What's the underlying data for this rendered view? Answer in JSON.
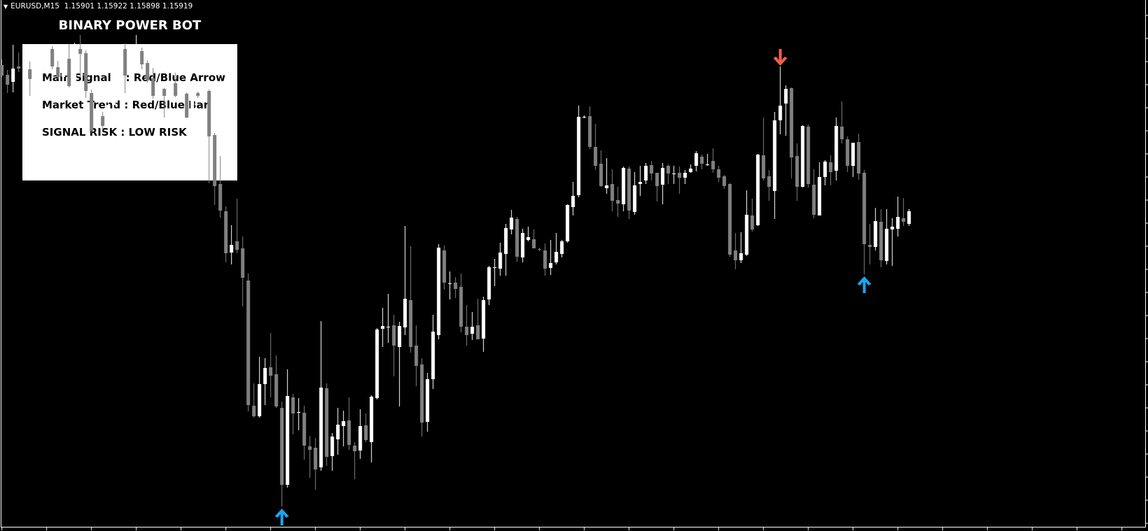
{
  "header": {
    "symbol": "EURUSD,M15",
    "ohlc": "1.15901 1.15922 1.15898 1.15919"
  },
  "panel": {
    "title": "BINARY POWER BOT",
    "lines": [
      "Main Signal    : Red/Blue Arrow",
      "Market Trend : Red/Blue Bar",
      "SIGNAL RISK : LOW RISK"
    ]
  },
  "colors": {
    "background": "#000000",
    "bull_candle": "#ffffff",
    "bear_candle": "#808080",
    "buy_arrow": "#1aa7ec",
    "sell_arrow": "#f4604a",
    "panel": "#ffffff"
  },
  "chart_data": {
    "type": "candlestick",
    "symbol": "EURUSD",
    "timeframe": "M15",
    "grid": false,
    "candle_format": "[open, high, low, close]",
    "candles": [
      [
        1.16128,
        1.16136,
        1.16111,
        1.16113
      ],
      [
        1.16114,
        1.16121,
        1.16088,
        1.161
      ],
      [
        1.16104,
        1.16157,
        1.16089,
        1.16123
      ],
      [
        1.16126,
        1.16146,
        1.16118,
        1.16123
      ],
      [
        1.16124,
        1.16147,
        1.16119,
        1.16124
      ],
      [
        1.16122,
        1.16133,
        1.16084,
        1.16108
      ],
      [
        1.16107,
        1.16118,
        1.16095,
        1.16107
      ],
      [
        1.16107,
        1.16133,
        1.16103,
        1.16129
      ],
      [
        1.16129,
        1.16155,
        1.16126,
        1.16151
      ],
      [
        1.16151,
        1.16155,
        1.16122,
        1.16126
      ],
      [
        1.16125,
        1.16134,
        1.16108,
        1.16111
      ],
      [
        1.16111,
        1.16141,
        1.16107,
        1.16137
      ],
      [
        1.16137,
        1.16158,
        1.16096,
        1.16098
      ],
      [
        1.16098,
        1.1616,
        1.16095,
        1.16149
      ],
      [
        1.16151,
        1.16171,
        1.16111,
        1.16144
      ],
      [
        1.16145,
        1.16149,
        1.16081,
        1.16091
      ],
      [
        1.16088,
        1.16093,
        1.16031,
        1.16034
      ],
      [
        1.16055,
        1.16068,
        1.16034,
        1.16055
      ],
      [
        1.16055,
        1.16061,
        1.16034,
        1.16041
      ],
      [
        1.16041,
        1.16075,
        1.16037,
        1.16071
      ],
      [
        1.16071,
        1.1611,
        1.16067,
        1.16106
      ],
      [
        1.16106,
        1.16155,
        1.16102,
        1.16151
      ],
      [
        1.16151,
        1.16159,
        1.16088,
        1.16113
      ],
      [
        1.16113,
        1.1615,
        1.16109,
        1.16146
      ],
      [
        1.16146,
        1.16171,
        1.16142,
        1.16148
      ],
      [
        1.16148,
        1.16153,
        1.16122,
        1.16129
      ],
      [
        1.16131,
        1.16135,
        1.16103,
        1.16106
      ],
      [
        1.16109,
        1.16124,
        1.1608,
        1.16084
      ],
      [
        1.16084,
        1.16098,
        1.16081,
        1.16094
      ],
      [
        1.16094,
        1.16095,
        1.16053,
        1.16084
      ],
      [
        1.16084,
        1.16106,
        1.16081,
        1.16102
      ],
      [
        1.16102,
        1.16117,
        1.16082,
        1.16084
      ],
      [
        1.16084,
        1.16091,
        1.16081,
        1.16087
      ],
      [
        1.16087,
        1.16089,
        1.16052,
        1.16053
      ],
      [
        1.16053,
        1.16091,
        1.1605,
        1.16088
      ],
      [
        1.16088,
        1.1609,
        1.16081,
        1.16084
      ],
      [
        1.16084,
        1.16094,
        1.16081,
        1.16091
      ],
      [
        1.16091,
        1.16093,
        1.15959,
        1.16026
      ],
      [
        1.16028,
        1.16031,
        1.15928,
        1.15955
      ],
      [
        1.15958,
        1.15998,
        1.1591,
        1.1592
      ],
      [
        1.15919,
        1.15926,
        1.15846,
        1.15859
      ],
      [
        1.1586,
        1.15899,
        1.15843,
        1.15871
      ],
      [
        1.15876,
        1.15937,
        1.15859,
        1.15864
      ],
      [
        1.15866,
        1.15883,
        1.15783,
        1.15824
      ],
      [
        1.1582,
        1.1583,
        1.15633,
        1.15642
      ],
      [
        1.15641,
        1.15673,
        1.15624,
        1.15626
      ],
      [
        1.15626,
        1.15711,
        1.15624,
        1.15672
      ],
      [
        1.15672,
        1.15709,
        1.15642,
        1.15695
      ],
      [
        1.15696,
        1.15745,
        1.15653,
        1.15684
      ],
      [
        1.15686,
        1.15713,
        1.15638,
        1.1564
      ],
      [
        1.15638,
        1.15647,
        1.15497,
        1.15528
      ],
      [
        1.15528,
        1.15693,
        1.15524,
        1.15655
      ],
      [
        1.15653,
        1.15658,
        1.156,
        1.1563
      ],
      [
        1.15632,
        1.15652,
        1.15606,
        1.15632
      ],
      [
        1.15631,
        1.15641,
        1.15564,
        1.15584
      ],
      [
        1.15583,
        1.15598,
        1.15538,
        1.15578
      ],
      [
        1.15581,
        1.15595,
        1.15521,
        1.1555
      ],
      [
        1.15553,
        1.15762,
        1.15548,
        1.15667
      ],
      [
        1.15666,
        1.15673,
        1.15555,
        1.15568
      ],
      [
        1.15569,
        1.15602,
        1.15548,
        1.15597
      ],
      [
        1.15593,
        1.15638,
        1.15571,
        1.15614
      ],
      [
        1.15612,
        1.15634,
        1.15583,
        1.15619
      ],
      [
        1.1562,
        1.15653,
        1.15578,
        1.15585
      ],
      [
        1.15584,
        1.15589,
        1.15536,
        1.15576
      ],
      [
        1.15577,
        1.15636,
        1.15565,
        1.15612
      ],
      [
        1.15613,
        1.1563,
        1.15589,
        1.15592
      ],
      [
        1.15589,
        1.15656,
        1.1556,
        1.15654
      ],
      [
        1.15652,
        1.15752,
        1.1565,
        1.1575
      ],
      [
        1.15751,
        1.15781,
        1.15725,
        1.15755
      ],
      [
        1.15754,
        1.15801,
        1.15731,
        1.15754
      ],
      [
        1.15756,
        1.15771,
        1.15683,
        1.15727
      ],
      [
        1.15725,
        1.15761,
        1.1564,
        1.15755
      ],
      [
        1.15753,
        1.15898,
        1.15742,
        1.15794
      ],
      [
        1.15792,
        1.15869,
        1.15717,
        1.15725
      ],
      [
        1.15727,
        1.15756,
        1.15669,
        1.15698
      ],
      [
        1.157,
        1.15709,
        1.15597,
        1.15617
      ],
      [
        1.15618,
        1.15688,
        1.15604,
        1.15679
      ],
      [
        1.15679,
        1.15771,
        1.15665,
        1.15747
      ],
      [
        1.15742,
        1.15872,
        1.15736,
        1.15867
      ],
      [
        1.15863,
        1.1587,
        1.15807,
        1.15817
      ],
      [
        1.15816,
        1.15833,
        1.15793,
        1.15816
      ],
      [
        1.15817,
        1.15825,
        1.15795,
        1.15808
      ],
      [
        1.15811,
        1.1583,
        1.15746,
        1.15754
      ],
      [
        1.15754,
        1.15785,
        1.15727,
        1.15742
      ],
      [
        1.15744,
        1.15775,
        1.15735,
        1.15754
      ],
      [
        1.15756,
        1.15794,
        1.15736,
        1.15736
      ],
      [
        1.15737,
        1.15797,
        1.15718,
        1.15792
      ],
      [
        1.15793,
        1.15841,
        1.15785,
        1.15839
      ],
      [
        1.15838,
        1.15851,
        1.15812,
        1.15839
      ],
      [
        1.15837,
        1.15874,
        1.15827,
        1.1586
      ],
      [
        1.15858,
        1.15901,
        1.15827,
        1.15895
      ],
      [
        1.15893,
        1.15921,
        1.15886,
        1.1591
      ],
      [
        1.15908,
        1.15911,
        1.15847,
        1.15854
      ],
      [
        1.15853,
        1.15894,
        1.15846,
        1.15888
      ],
      [
        1.15878,
        1.15897,
        1.15876,
        1.15882
      ],
      [
        1.15879,
        1.15893,
        1.15866,
        1.15866
      ],
      [
        1.15865,
        1.15867,
        1.15862,
        1.15864
      ],
      [
        1.15863,
        1.15873,
        1.15827,
        1.15837
      ],
      [
        1.15838,
        1.15878,
        1.15828,
        1.15845
      ],
      [
        1.15846,
        1.15888,
        1.15843,
        1.15861
      ],
      [
        1.15858,
        1.15878,
        1.15853,
        1.15876
      ],
      [
        1.15876,
        1.15929,
        1.15874,
        1.15928
      ],
      [
        1.15925,
        1.15961,
        1.15913,
        1.15941
      ],
      [
        1.15942,
        1.1607,
        1.15939,
        1.16054
      ],
      [
        1.16054,
        1.16056,
        1.16052,
        1.16054
      ],
      [
        1.16055,
        1.16069,
        1.16008,
        1.16011
      ],
      [
        1.16011,
        1.16044,
        1.15978,
        1.15984
      ],
      [
        1.15987,
        1.16006,
        1.15954,
        1.15955
      ],
      [
        1.15952,
        1.15995,
        1.15944,
        1.15956
      ],
      [
        1.15958,
        1.15979,
        1.15919,
        1.15934
      ],
      [
        1.15935,
        1.15954,
        1.15911,
        1.1593
      ],
      [
        1.15929,
        1.15983,
        1.15919,
        1.15981
      ],
      [
        1.1598,
        1.15983,
        1.15908,
        1.1592
      ],
      [
        1.15918,
        1.15975,
        1.15914,
        1.15956
      ],
      [
        1.15958,
        1.15984,
        1.15941,
        1.15961
      ],
      [
        1.15963,
        1.15988,
        1.15958,
        1.15984
      ],
      [
        1.15985,
        1.15991,
        1.15963,
        1.15973
      ],
      [
        1.15974,
        1.15974,
        1.15933,
        1.15955
      ],
      [
        1.15957,
        1.15988,
        1.15929,
        1.15981
      ],
      [
        1.15984,
        1.15986,
        1.15958,
        1.15973
      ],
      [
        1.15973,
        1.15984,
        1.15958,
        1.15973
      ],
      [
        1.15974,
        1.15983,
        1.15944,
        1.15967
      ],
      [
        1.15967,
        1.15978,
        1.15958,
        1.15974
      ],
      [
        1.15975,
        1.15986,
        1.15974,
        1.1598
      ],
      [
        1.15984,
        1.16005,
        1.15976,
        1.16002
      ],
      [
        1.15997,
        1.16,
        1.15979,
        1.15987
      ],
      [
        1.15986,
        1.16001,
        1.15984,
        1.15986
      ],
      [
        1.15991,
        1.16009,
        1.15974,
        1.15979
      ],
      [
        1.15979,
        1.15984,
        1.15961,
        1.15967
      ],
      [
        1.15969,
        1.15971,
        1.15951,
        1.15955
      ],
      [
        1.15958,
        1.15959,
        1.15854,
        1.15857
      ],
      [
        1.15863,
        1.15888,
        1.15836,
        1.15849
      ],
      [
        1.15849,
        1.15889,
        1.15845,
        1.15859
      ],
      [
        1.15857,
        1.15949,
        1.15855,
        1.15914
      ],
      [
        1.15913,
        1.15937,
        1.1589,
        1.15893
      ],
      [
        1.15899,
        1.16001,
        1.15898,
        1.16
      ],
      [
        1.15999,
        1.16053,
        1.15963,
        1.15966
      ],
      [
        1.15969,
        1.15978,
        1.15934,
        1.15954
      ],
      [
        1.15948,
        1.16061,
        1.15908,
        1.16049
      ],
      [
        1.16049,
        1.16126,
        1.16029,
        1.1607
      ],
      [
        1.16073,
        1.16099,
        1.16027,
        1.16094
      ],
      [
        1.16095,
        1.16096,
        1.15966,
        1.15996
      ],
      [
        1.15998,
        1.16016,
        1.15934,
        1.15954
      ],
      [
        1.15954,
        1.16042,
        1.15953,
        1.16041
      ],
      [
        1.1604,
        1.16043,
        1.15953,
        1.15958
      ],
      [
        1.15957,
        1.15979,
        1.15909,
        1.15914
      ],
      [
        1.15913,
        1.15989,
        1.15913,
        1.15968
      ],
      [
        1.15968,
        1.15992,
        1.15956,
        1.1599
      ],
      [
        1.15989,
        1.15999,
        1.15956,
        1.15975
      ],
      [
        1.15977,
        1.16053,
        1.15963,
        1.16041
      ],
      [
        1.1604,
        1.16076,
        1.16016,
        1.16022
      ],
      [
        1.16022,
        1.16026,
        1.15975,
        1.15984
      ],
      [
        1.15984,
        1.16017,
        1.15968,
        1.16017
      ],
      [
        1.16018,
        1.1603,
        1.15964,
        1.15973
      ],
      [
        1.15974,
        1.15978,
        1.15829,
        1.15872
      ],
      [
        1.15871,
        1.15901,
        1.15843,
        1.15868
      ],
      [
        1.15868,
        1.15924,
        1.15863,
        1.15905
      ],
      [
        1.15904,
        1.15922,
        1.15839,
        1.15849
      ],
      [
        1.15848,
        1.15922,
        1.15843,
        1.15894
      ],
      [
        1.15893,
        1.15909,
        1.15841,
        1.15897
      ],
      [
        1.15894,
        1.1594,
        1.15883,
        1.15911
      ],
      [
        1.15909,
        1.15938,
        1.15898,
        1.15904
      ],
      [
        1.15901,
        1.15922,
        1.15898,
        1.15919
      ]
    ],
    "signals": [
      {
        "candle": 50,
        "type": "buy",
        "icon": "arrow-up-icon"
      },
      {
        "candle": 139,
        "type": "sell",
        "icon": "arrow-down-icon"
      },
      {
        "candle": 154,
        "type": "buy",
        "icon": "arrow-up-icon"
      }
    ]
  }
}
